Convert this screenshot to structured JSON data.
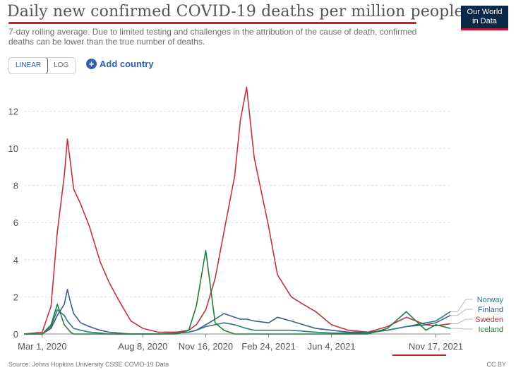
{
  "header": {
    "title": "Daily new confirmed COVID-19 deaths per million people",
    "subtitle": "7-day rolling average. Due to limited testing and challenges in the attribution of the cause of death, confirmed deaths can be lower than the true number of deaths.",
    "logo_line1": "Our World",
    "logo_line2": "in Data"
  },
  "controls": {
    "linear_label": "LINEAR",
    "log_label": "LOG",
    "add_country_label": "Add country"
  },
  "footer": {
    "source": "Source: Johns Hopkins University CSSE COVID-19 Data",
    "license": "CC BY"
  },
  "colors": {
    "Norway": "#2e7a78",
    "Finland": "#3a5f86",
    "Sweden": "#c0333f",
    "Iceland": "#1f7f3a",
    "axis": "#555555",
    "grid": "#dddddd"
  },
  "chart_data": {
    "type": "line",
    "title": "Daily new confirmed COVID-19 deaths per million people",
    "xlabel": "",
    "ylabel": "",
    "ylim": [
      0,
      13.5
    ],
    "yticks": [
      0,
      2,
      4,
      6,
      8,
      10,
      12
    ],
    "xticks": [
      "Mar 1, 2020",
      "Aug 8, 2020",
      "Nov 16, 2020",
      "Feb 24, 2021",
      "Jun 4, 2021",
      "Nov 17, 2021"
    ],
    "grid": "horizontal",
    "legend": "end-of-line labels, right",
    "x": [
      "2020-02-01",
      "2020-03-01",
      "2020-03-15",
      "2020-03-25",
      "2020-04-05",
      "2020-04-10",
      "2020-04-15",
      "2020-04-20",
      "2020-05-01",
      "2020-05-15",
      "2020-06-01",
      "2020-06-15",
      "2020-07-01",
      "2020-07-20",
      "2020-08-08",
      "2020-09-01",
      "2020-10-01",
      "2020-10-20",
      "2020-11-01",
      "2020-11-16",
      "2020-12-01",
      "2020-12-15",
      "2021-01-01",
      "2021-01-10",
      "2021-01-20",
      "2021-02-01",
      "2021-02-24",
      "2021-03-10",
      "2021-04-01",
      "2021-04-20",
      "2021-05-10",
      "2021-06-04",
      "2021-07-01",
      "2021-08-01",
      "2021-09-01",
      "2021-10-01",
      "2021-11-01",
      "2021-11-17",
      "2021-12-10"
    ],
    "series": [
      {
        "name": "Sweden",
        "values": [
          0,
          0.1,
          1.5,
          5.5,
          8.5,
          10.5,
          9.2,
          7.8,
          7.0,
          5.8,
          3.9,
          2.8,
          1.8,
          0.7,
          0.3,
          0.1,
          0.1,
          0.2,
          0.5,
          1.3,
          3.0,
          5.5,
          8.5,
          11.5,
          13.3,
          9.5,
          5.8,
          3.2,
          2.0,
          1.6,
          1.2,
          0.5,
          0.2,
          0.1,
          0.4,
          0.9,
          0.5,
          0.45,
          0.55
        ]
      },
      {
        "name": "Finland",
        "values": [
          0,
          0,
          0.3,
          1.0,
          1.6,
          2.4,
          1.7,
          1.1,
          0.6,
          0.4,
          0.2,
          0.1,
          0.05,
          0,
          0,
          0,
          0.05,
          0.1,
          0.2,
          0.5,
          0.8,
          1.1,
          0.9,
          0.8,
          0.8,
          0.7,
          0.6,
          0.9,
          0.7,
          0.5,
          0.3,
          0.2,
          0.1,
          0.1,
          0.2,
          0.4,
          0.5,
          0.6,
          1.0
        ]
      },
      {
        "name": "Norway",
        "values": [
          0,
          0,
          0.4,
          1.3,
          1.0,
          0.7,
          0.5,
          0.3,
          0.2,
          0.1,
          0.05,
          0,
          0,
          0,
          0,
          0,
          0.05,
          0.1,
          0.2,
          0.4,
          0.5,
          0.6,
          0.5,
          0.4,
          0.3,
          0.2,
          0.2,
          0.2,
          0.2,
          0.15,
          0.1,
          0.05,
          0.05,
          0.05,
          0.2,
          0.4,
          0.6,
          0.7,
          1.2
        ]
      },
      {
        "name": "Iceland",
        "values": [
          0,
          0,
          0.5,
          1.6,
          0.5,
          0.3,
          0.1,
          0,
          0,
          0,
          0,
          0,
          0,
          0,
          0,
          0,
          0,
          0.2,
          1.5,
          4.5,
          0.6,
          0.2,
          0,
          0,
          0,
          0,
          0,
          0,
          0,
          0,
          0,
          0,
          0,
          0,
          0.3,
          1.2,
          0.2,
          0.5,
          0.3
        ]
      }
    ]
  }
}
